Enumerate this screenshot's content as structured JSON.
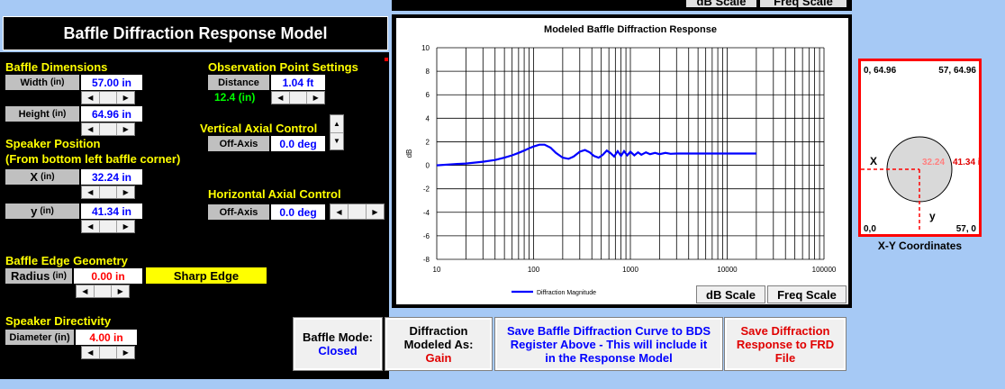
{
  "title": "Baffle Diffraction Response Model",
  "baffle_dimensions": {
    "header": "Baffle Dimensions",
    "width_label": "Width",
    "width_unit": "(in)",
    "width_value": "57.00 in",
    "height_label": "Height",
    "height_unit": "(in)",
    "height_value": "64.96 in"
  },
  "speaker_position": {
    "header_line1": "Speaker Position",
    "header_line2": "(From bottom left baffle corner)",
    "x_label": "X",
    "x_unit": "(in)",
    "x_value": "32.24 in",
    "y_label": "y",
    "y_unit": "(in)",
    "y_value": "41.34 in"
  },
  "observation": {
    "header": "Observation Point Settings",
    "distance_label": "Distance",
    "distance_value": "1.04 ft",
    "distance_in": "12.4 (in)"
  },
  "vertical_axial": {
    "header": "Vertical Axial Control",
    "label": "Off-Axis",
    "value": "0.0 deg"
  },
  "horizontal_axial": {
    "header": "Horizontal Axial Control",
    "label": "Off-Axis",
    "value": "0.0 deg"
  },
  "edge_geometry": {
    "header": "Baffle Edge Geometry",
    "radius_label": "Radius",
    "radius_unit": "(in)",
    "radius_value": "0.00 in",
    "edge_type": "Sharp Edge"
  },
  "directivity": {
    "header": "Speaker Directivity",
    "diameter_label": "Diameter (in)",
    "diameter_value": "4.00 in"
  },
  "buttons": {
    "baffle_mode_line1": "Baffle Mode:",
    "baffle_mode_line2": "Closed",
    "diff_line1": "Diffraction",
    "diff_line2": "Modeled As:",
    "diff_line3": "Gain",
    "save_bds_line1": "Save Baffle Diffraction Curve to BDS",
    "save_bds_line2": "Register Above - This will include it",
    "save_bds_line3": "in the Response  Model",
    "save_frd_line1": "Save Diffraction",
    "save_frd_line2": "Response  to FRD",
    "save_frd_line3": "File",
    "db_scale": "dB Scale",
    "freq_scale": "Freq Scale",
    "db_scale_top": "dB Scale",
    "freq_scale_top": "Freq Scale"
  },
  "xy": {
    "top_left": "0, 64.96",
    "top_right": "57, 64.96",
    "bottom_left": "0,0",
    "bottom_right": "57, 0",
    "x_axis": "X",
    "y_axis": "y",
    "x_marker": "32.24",
    "y_marker": "41.34 in",
    "caption": "X-Y Coordinates"
  },
  "chart_data": {
    "type": "line",
    "title": "Modeled Baffle Diffraction Response",
    "xlabel": "",
    "ylabel": "dB",
    "xscale": "log",
    "xlim": [
      10,
      100000
    ],
    "ylim": [
      -8,
      10
    ],
    "x_ticks": [
      "10",
      "100",
      "1000",
      "10000",
      "100000"
    ],
    "y_ticks": [
      "10",
      "8",
      "6",
      "4",
      "2",
      "0",
      "-2",
      "-4",
      "-6",
      "-8"
    ],
    "grid": true,
    "legend_position": "bottom-left",
    "series": [
      {
        "name": "Diffraction Magnitude",
        "color": "#0000ff",
        "x": [
          10,
          15,
          20,
          30,
          40,
          50,
          60,
          70,
          80,
          90,
          100,
          115,
          130,
          150,
          170,
          200,
          230,
          260,
          300,
          340,
          380,
          420,
          470,
          520,
          570,
          620,
          680,
          740,
          800,
          860,
          930,
          1000,
          1100,
          1200,
          1300,
          1450,
          1600,
          1800,
          2000,
          2300,
          2600,
          3000,
          4000,
          6000,
          10000,
          20000
        ],
        "y": [
          0.0,
          0.1,
          0.15,
          0.3,
          0.45,
          0.65,
          0.85,
          1.05,
          1.25,
          1.45,
          1.6,
          1.75,
          1.75,
          1.5,
          1.05,
          0.65,
          0.55,
          0.75,
          1.15,
          1.3,
          1.1,
          0.8,
          0.65,
          0.9,
          1.25,
          1.05,
          0.75,
          1.2,
          0.8,
          1.2,
          0.85,
          1.15,
          0.85,
          1.1,
          0.9,
          1.1,
          0.95,
          1.05,
          0.95,
          1.05,
          0.98,
          1.0,
          1.0,
          1.0,
          1.0,
          1.0
        ]
      }
    ]
  }
}
